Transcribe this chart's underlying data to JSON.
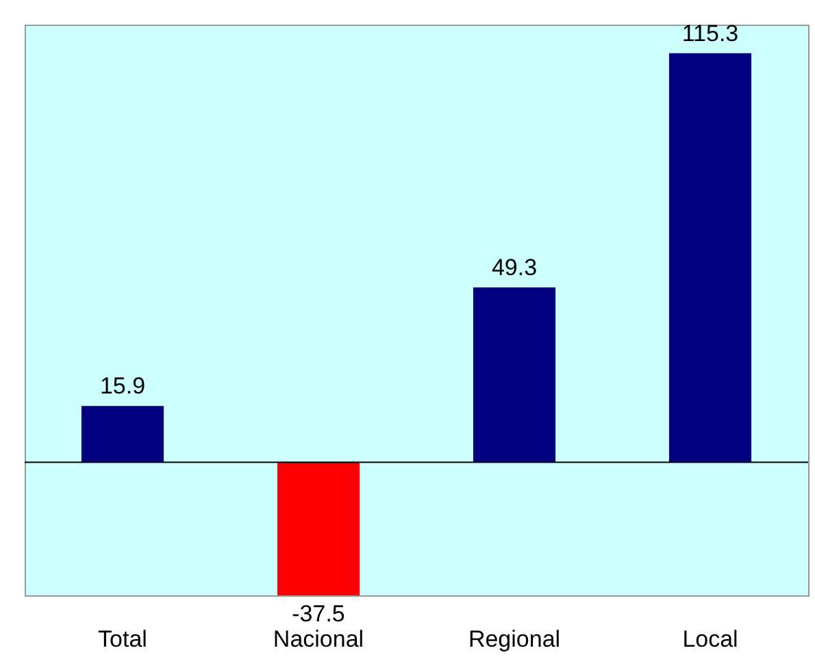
{
  "chart_data": {
    "type": "bar",
    "categories": [
      "Total",
      "Nacional",
      "Regional",
      "Local"
    ],
    "values": [
      15.9,
      -37.5,
      49.3,
      115.3
    ],
    "colors": [
      "#000080",
      "#ff0000",
      "#000080",
      "#000080"
    ],
    "data_labels": true
  }
}
